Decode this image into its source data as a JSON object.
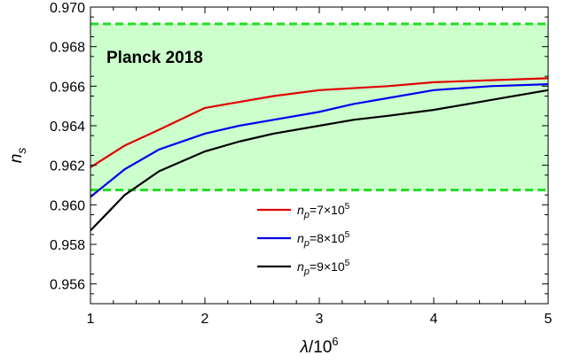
{
  "chart_data": {
    "type": "line",
    "xlabel": {
      "symbol": "λ",
      "text": "/10",
      "exp": "6"
    },
    "ylabel": {
      "symbol": "n",
      "sub": "s"
    },
    "xlim": [
      1,
      5
    ],
    "ylim": [
      0.955,
      0.97
    ],
    "x_ticks": [
      "1",
      "2",
      "3",
      "4",
      "5"
    ],
    "y_ticks": [
      "0.956",
      "0.958",
      "0.960",
      "0.962",
      "0.964",
      "0.966",
      "0.968",
      "0.970"
    ],
    "band": {
      "label": "Planck 2018",
      "lower": 0.96075,
      "upper": 0.96915,
      "fill_color": "#ccffcc",
      "line_color": "#22dd22"
    },
    "legend_position": "bottom-center",
    "series": [
      {
        "name": {
          "symbol": "n",
          "sub": "p",
          "text": "=7×10",
          "exp": "5"
        },
        "color": "#e00000",
        "x": [
          1,
          1.3,
          1.6,
          2,
          2.3,
          2.6,
          3,
          3.3,
          3.6,
          4,
          4.5,
          5
        ],
        "y": [
          0.9619,
          0.963,
          0.9638,
          0.9649,
          0.9652,
          0.9655,
          0.9658,
          0.9659,
          0.966,
          0.9662,
          0.9663,
          0.9664
        ]
      },
      {
        "name": {
          "symbol": "n",
          "sub": "p",
          "text": "=8×10",
          "exp": "5"
        },
        "color": "#0000ee",
        "x": [
          1,
          1.3,
          1.6,
          2,
          2.3,
          2.6,
          3,
          3.3,
          3.6,
          4,
          4.5,
          5
        ],
        "y": [
          0.9604,
          0.9618,
          0.9628,
          0.9636,
          0.964,
          0.9643,
          0.9647,
          0.9651,
          0.9654,
          0.9658,
          0.966,
          0.9661
        ]
      },
      {
        "name": {
          "symbol": "n",
          "sub": "p",
          "text": "=9×10",
          "exp": "5"
        },
        "color": "#000000",
        "x": [
          1,
          1.3,
          1.6,
          2,
          2.3,
          2.6,
          3,
          3.3,
          3.6,
          4,
          4.5,
          5
        ],
        "y": [
          0.9587,
          0.9605,
          0.9617,
          0.9627,
          0.9632,
          0.9636,
          0.964,
          0.9643,
          0.9645,
          0.9648,
          0.9653,
          0.9658
        ]
      }
    ]
  }
}
